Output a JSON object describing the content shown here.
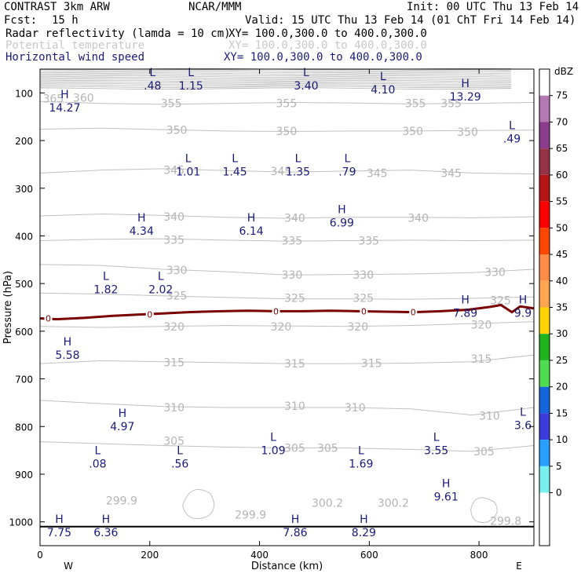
{
  "header": {
    "title": "CONTRAST  3km ARW",
    "source": "NCAR/MMM",
    "init": "Init: 00 UTC Thu 13 Feb 14",
    "fcst_label": "Fcst:",
    "fcst_value": "15 h",
    "valid": "Valid: 15 UTC Thu 13 Feb 14 (01 ChT Fri 14 Feb 14)",
    "fields": [
      {
        "name": "Radar reflectivity (lamda = 10 cm)",
        "xy": "XY= 100.0,300.0 to 400.0,300.0",
        "color": "#000000"
      },
      {
        "name": "Potential temperature",
        "xy": "XY= 100.0,300.0 to 400.0,300.0",
        "color": "#c8c8c8"
      },
      {
        "name": "Horizontal wind speed",
        "xy": "XY= 100.0,300.0 to 400.0,300.0",
        "color": "#1a1a7a"
      }
    ]
  },
  "chart_data": {
    "type": "contour",
    "xlabel": "Distance (km)",
    "ylabel": "Pressure (hPa)",
    "xlim": [
      0,
      900
    ],
    "ylim": [
      1050,
      50
    ],
    "x_ticks": [
      0,
      200,
      400,
      600,
      800
    ],
    "y_ticks": [
      100,
      200,
      300,
      400,
      500,
      600,
      700,
      800,
      900,
      1000
    ],
    "x_end_labels": {
      "left": "W",
      "right": "E"
    },
    "theta_labels": [
      {
        "text": "365",
        "x": 5,
        "p": 112
      },
      {
        "text": "360",
        "x": 60,
        "p": 110
      },
      {
        "text": "355",
        "x": 220,
        "p": 122
      },
      {
        "text": "355",
        "x": 430,
        "p": 122
      },
      {
        "text": "355",
        "x": 665,
        "p": 122
      },
      {
        "text": "355",
        "x": 730,
        "p": 122
      },
      {
        "text": "350",
        "x": 230,
        "p": 178
      },
      {
        "text": "350",
        "x": 430,
        "p": 180
      },
      {
        "text": "350",
        "x": 660,
        "p": 180
      },
      {
        "text": "350",
        "x": 760,
        "p": 182
      },
      {
        "text": "345",
        "x": 225,
        "p": 262
      },
      {
        "text": "345",
        "x": 420,
        "p": 264
      },
      {
        "text": "345",
        "x": 595,
        "p": 268
      },
      {
        "text": "345",
        "x": 730,
        "p": 268
      },
      {
        "text": "340",
        "x": 225,
        "p": 360
      },
      {
        "text": "340",
        "x": 445,
        "p": 362
      },
      {
        "text": "340",
        "x": 670,
        "p": 362
      },
      {
        "text": "335",
        "x": 225,
        "p": 408
      },
      {
        "text": "335",
        "x": 440,
        "p": 410
      },
      {
        "text": "335",
        "x": 580,
        "p": 410
      },
      {
        "text": "330",
        "x": 230,
        "p": 472
      },
      {
        "text": "330",
        "x": 440,
        "p": 482
      },
      {
        "text": "330",
        "x": 570,
        "p": 482
      },
      {
        "text": "330",
        "x": 810,
        "p": 476
      },
      {
        "text": "325",
        "x": 230,
        "p": 525
      },
      {
        "text": "325",
        "x": 445,
        "p": 530
      },
      {
        "text": "325",
        "x": 570,
        "p": 530
      },
      {
        "text": "325",
        "x": 820,
        "p": 535
      },
      {
        "text": "320",
        "x": 225,
        "p": 590
      },
      {
        "text": "320",
        "x": 420,
        "p": 590
      },
      {
        "text": "320",
        "x": 560,
        "p": 590
      },
      {
        "text": "320",
        "x": 785,
        "p": 586
      },
      {
        "text": "315",
        "x": 225,
        "p": 665
      },
      {
        "text": "315",
        "x": 445,
        "p": 668
      },
      {
        "text": "315",
        "x": 585,
        "p": 667
      },
      {
        "text": "315",
        "x": 785,
        "p": 658
      },
      {
        "text": "310",
        "x": 225,
        "p": 760
      },
      {
        "text": "310",
        "x": 445,
        "p": 757
      },
      {
        "text": "310",
        "x": 555,
        "p": 760
      },
      {
        "text": "310",
        "x": 800,
        "p": 777
      },
      {
        "text": "305",
        "x": 225,
        "p": 830
      },
      {
        "text": "305",
        "x": 445,
        "p": 845
      },
      {
        "text": "305",
        "x": 505,
        "p": 845
      },
      {
        "text": "305",
        "x": 790,
        "p": 852
      },
      {
        "text": "299.9",
        "x": 120,
        "p": 955
      },
      {
        "text": "299.9",
        "x": 355,
        "p": 985
      },
      {
        "text": "300.2",
        "x": 495,
        "p": 960
      },
      {
        "text": "300.2",
        "x": 615,
        "p": 960
      },
      {
        "text": "299.8",
        "x": 820,
        "p": 998
      }
    ],
    "wind_speed_extrema": [
      {
        "type": "L",
        "value": ".48",
        "x": 205,
        "p": 65
      },
      {
        "type": "L",
        "value": "1.15",
        "x": 275,
        "p": 65
      },
      {
        "type": "L",
        "value": "3.40",
        "x": 485,
        "p": 65
      },
      {
        "type": "L",
        "value": "4.10",
        "x": 625,
        "p": 73
      },
      {
        "type": "H",
        "value": "13.29",
        "x": 775,
        "p": 88
      },
      {
        "type": "H",
        "value": "14.27",
        "x": 45,
        "p": 111
      },
      {
        "type": "L",
        "value": ".49",
        "x": 860,
        "p": 176
      },
      {
        "type": "L",
        "value": "1.01",
        "x": 270,
        "p": 245
      },
      {
        "type": "L",
        "value": "1.45",
        "x": 355,
        "p": 245
      },
      {
        "type": "L",
        "value": "1.35",
        "x": 470,
        "p": 245
      },
      {
        "type": "L",
        "value": ".79",
        "x": 560,
        "p": 245
      },
      {
        "type": "H",
        "value": "6.99",
        "x": 550,
        "p": 352
      },
      {
        "type": "H",
        "value": "4.34",
        "x": 185,
        "p": 370
      },
      {
        "type": "H",
        "value": "6.14",
        "x": 385,
        "p": 370
      },
      {
        "type": "L",
        "value": "1.82",
        "x": 120,
        "p": 492
      },
      {
        "type": "L",
        "value": "2.02",
        "x": 220,
        "p": 492
      },
      {
        "type": "H",
        "value": "7.89",
        "x": 775,
        "p": 542
      },
      {
        "type": "H",
        "value": "9.9",
        "x": 880,
        "p": 542
      },
      {
        "type": "H",
        "value": "5.58",
        "x": 50,
        "p": 630
      },
      {
        "type": "H",
        "value": "4.97",
        "x": 150,
        "p": 780
      },
      {
        "type": "L",
        "value": "3.6",
        "x": 880,
        "p": 777
      },
      {
        "type": "L",
        "value": "1.09",
        "x": 425,
        "p": 830
      },
      {
        "type": "L",
        "value": "3.55",
        "x": 722,
        "p": 830
      },
      {
        "type": "L",
        "value": ".08",
        "x": 105,
        "p": 858
      },
      {
        "type": "L",
        "value": ".56",
        "x": 255,
        "p": 858
      },
      {
        "type": "L",
        "value": "1.69",
        "x": 585,
        "p": 858
      },
      {
        "type": "H",
        "value": "9.61",
        "x": 740,
        "p": 927
      },
      {
        "type": "H",
        "value": "7.75",
        "x": 35,
        "p": 1002
      },
      {
        "type": "H",
        "value": "6.36",
        "x": 120,
        "p": 1002
      },
      {
        "type": "H",
        "value": "7.86",
        "x": 465,
        "p": 1002
      },
      {
        "type": "H",
        "value": "8.29",
        "x": 590,
        "p": 1002
      }
    ],
    "reflectivity_zero_contour": {
      "x": [
        0,
        30,
        80,
        130,
        180,
        220,
        270,
        330,
        380,
        430,
        480,
        530,
        580,
        630,
        680,
        730,
        780,
        820,
        840,
        860,
        875,
        900
      ],
      "p": [
        573,
        575,
        572,
        568,
        565,
        563,
        560,
        558,
        557,
        558,
        558,
        557,
        558,
        559,
        560,
        558,
        555,
        549,
        545,
        560,
        548,
        552
      ],
      "label": "0",
      "label_x": [
        15,
        200,
        430,
        590,
        680
      ]
    },
    "terrain": {
      "p": 1010,
      "color": "#000000"
    },
    "colorbar": {
      "unit": "dBZ",
      "levels": [
        "75",
        "70",
        "65",
        "60",
        "55",
        "50",
        "45",
        "40",
        "35",
        "30",
        "25",
        "20",
        "15",
        "10",
        "5",
        "0"
      ],
      "colors": [
        "#ffffff",
        "#b478b4",
        "#8c3c8c",
        "#963246",
        "#b41414",
        "#ff0000",
        "#ff4600",
        "#ff8c46",
        "#ffa550",
        "#ffd200",
        "#1eb41e",
        "#50dc50",
        "#1464dc",
        "#3c3cdc",
        "#28a0ff",
        "#78f0f0",
        "#ffffff",
        "#ffffff"
      ]
    }
  }
}
